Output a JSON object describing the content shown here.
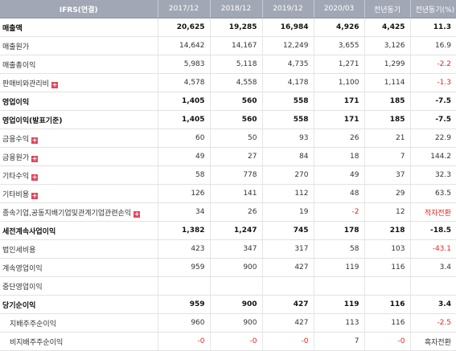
{
  "colors": {
    "header_bg": "#a2a7b5",
    "negative": "#e8241b",
    "expand_icon": "#e0475c"
  },
  "header": [
    "IFRS(연결)",
    "2017/12",
    "2018/12",
    "2019/12",
    "2020/03",
    "전년동기",
    "전년동기(%)"
  ],
  "rows": [
    {
      "label": "매출액",
      "bold": true,
      "expand": false,
      "sub": false,
      "values": [
        "20,625",
        "19,285",
        "16,984",
        "4,926",
        "4,425",
        "11.3"
      ]
    },
    {
      "label": "매출원가",
      "bold": false,
      "expand": false,
      "sub": false,
      "values": [
        "14,642",
        "14,167",
        "12,249",
        "3,655",
        "3,126",
        "16.9"
      ]
    },
    {
      "label": "매출총이익",
      "bold": false,
      "expand": false,
      "sub": false,
      "values": [
        "5,983",
        "5,118",
        "4,735",
        "1,271",
        "1,299",
        "-2.2"
      ]
    },
    {
      "label": "판매비와관리비",
      "bold": false,
      "expand": true,
      "sub": false,
      "values": [
        "4,578",
        "4,558",
        "4,178",
        "1,100",
        "1,114",
        "-1.3"
      ]
    },
    {
      "label": "영업이익",
      "bold": true,
      "expand": false,
      "sub": false,
      "values": [
        "1,405",
        "560",
        "558",
        "171",
        "185",
        "-7.5"
      ]
    },
    {
      "label": "영업이익(발표기준)",
      "bold": true,
      "expand": false,
      "sub": false,
      "values": [
        "1,405",
        "560",
        "558",
        "171",
        "185",
        "-7.5"
      ]
    },
    {
      "label": "금융수익",
      "bold": false,
      "expand": true,
      "sub": false,
      "values": [
        "60",
        "50",
        "93",
        "26",
        "21",
        "22.9"
      ]
    },
    {
      "label": "금융원가",
      "bold": false,
      "expand": true,
      "sub": false,
      "values": [
        "49",
        "27",
        "84",
        "18",
        "7",
        "144.2"
      ]
    },
    {
      "label": "기타수익",
      "bold": false,
      "expand": true,
      "sub": false,
      "values": [
        "58",
        "778",
        "270",
        "49",
        "37",
        "32.3"
      ]
    },
    {
      "label": "기타비용",
      "bold": false,
      "expand": true,
      "sub": false,
      "values": [
        "126",
        "141",
        "112",
        "48",
        "29",
        "63.5"
      ]
    },
    {
      "label": "종속기업,공동지배기업및관계기업관련손익",
      "bold": false,
      "expand": true,
      "sub": false,
      "values": [
        "34",
        "26",
        "19",
        "-2",
        "12",
        "적자전환"
      ]
    },
    {
      "label": "세전계속사업이익",
      "bold": true,
      "expand": false,
      "sub": false,
      "values": [
        "1,382",
        "1,247",
        "745",
        "178",
        "218",
        "-18.5"
      ]
    },
    {
      "label": "법인세비용",
      "bold": false,
      "expand": false,
      "sub": false,
      "values": [
        "423",
        "347",
        "317",
        "58",
        "103",
        "-43.1"
      ]
    },
    {
      "label": "계속영업이익",
      "bold": false,
      "expand": false,
      "sub": false,
      "values": [
        "959",
        "900",
        "427",
        "119",
        "116",
        "3.4"
      ]
    },
    {
      "label": "중단영업이익",
      "bold": false,
      "expand": false,
      "sub": false,
      "values": [
        "",
        "",
        "",
        "",
        "",
        ""
      ]
    },
    {
      "label": "당기순이익",
      "bold": true,
      "expand": false,
      "sub": false,
      "values": [
        "959",
        "900",
        "427",
        "119",
        "116",
        "3.4"
      ]
    },
    {
      "label": "지배주주순이익",
      "bold": false,
      "expand": false,
      "sub": true,
      "values": [
        "960",
        "900",
        "427",
        "113",
        "116",
        "-2.5"
      ]
    },
    {
      "label": "비지배주주순이익",
      "bold": false,
      "expand": false,
      "sub": true,
      "values": [
        "-0",
        "-0",
        "-0",
        "7",
        "-0",
        "흑자전환"
      ]
    }
  ]
}
